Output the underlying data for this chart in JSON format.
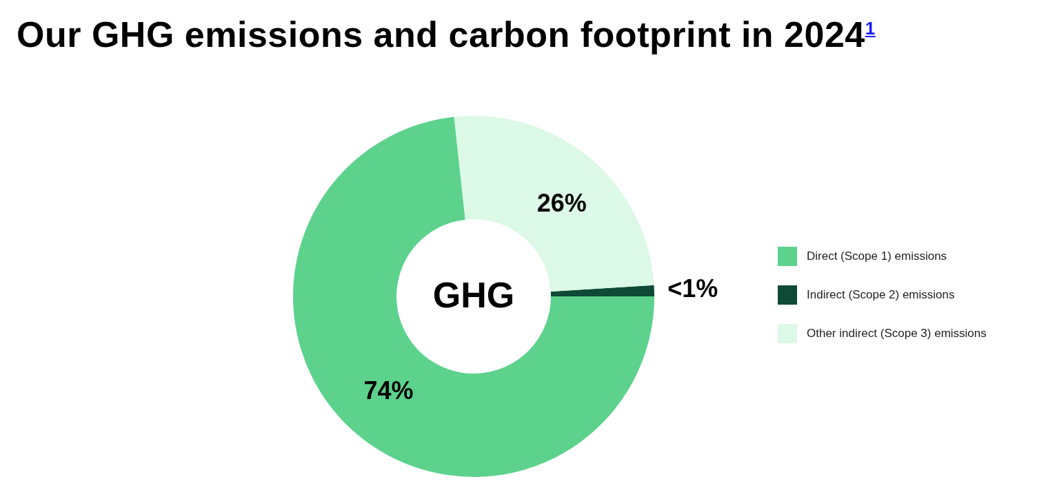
{
  "chart_data": {
    "type": "donut",
    "title": "Our GHG emissions and carbon footprint in 2024$^{1}$",
    "categories": [
      "Direct (Scope 1) emissions",
      "Indirect (Scope 2) emissions",
      "Other indirect (Scope 3) emissions"
    ],
    "values": [
      74,
      1,
      26
    ],
    "value_labels": [
      "74%",
      "<1%",
      "26%"
    ],
    "colors": [
      "#5cd28c",
      "#0e4a36",
      "#dcf8e6"
    ],
    "annotations": [
      "GHG"
    ],
    "legend": "right"
  }
}
